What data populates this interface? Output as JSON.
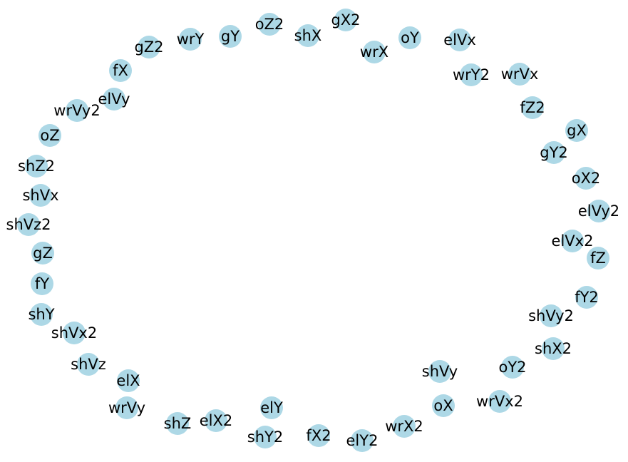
{
  "graph": {
    "node_color": "#add8e6",
    "label_color": "#000000",
    "background": "#ffffff",
    "nodes": [
      {
        "id": "gX2"
      },
      {
        "id": "oZ2"
      },
      {
        "id": "shX"
      },
      {
        "id": "oY"
      },
      {
        "id": "gY"
      },
      {
        "id": "wrY"
      },
      {
        "id": "elVx"
      },
      {
        "id": "wrX"
      },
      {
        "id": "gZ2"
      },
      {
        "id": "wrVx"
      },
      {
        "id": "wrY2"
      },
      {
        "id": "fX"
      },
      {
        "id": "elVy"
      },
      {
        "id": "fZ2"
      },
      {
        "id": "wrVy2"
      },
      {
        "id": "oZ"
      },
      {
        "id": "gX"
      },
      {
        "id": "gY2"
      },
      {
        "id": "shZ2"
      },
      {
        "id": "oX2"
      },
      {
        "id": "shVx"
      },
      {
        "id": "elVy2"
      },
      {
        "id": "shVz2"
      },
      {
        "id": "elVx2"
      },
      {
        "id": "gZ"
      },
      {
        "id": "fZ"
      },
      {
        "id": "fY"
      },
      {
        "id": "fY2"
      },
      {
        "id": "shY"
      },
      {
        "id": "shVy2"
      },
      {
        "id": "shVx2"
      },
      {
        "id": "shX2"
      },
      {
        "id": "shVz"
      },
      {
        "id": "shVy"
      },
      {
        "id": "oY2"
      },
      {
        "id": "elX"
      },
      {
        "id": "wrVx2"
      },
      {
        "id": "oX"
      },
      {
        "id": "wrVy"
      },
      {
        "id": "elY"
      },
      {
        "id": "shZ"
      },
      {
        "id": "elX2"
      },
      {
        "id": "wrX2"
      },
      {
        "id": "shY2"
      },
      {
        "id": "fX2"
      },
      {
        "id": "elY2"
      }
    ]
  }
}
